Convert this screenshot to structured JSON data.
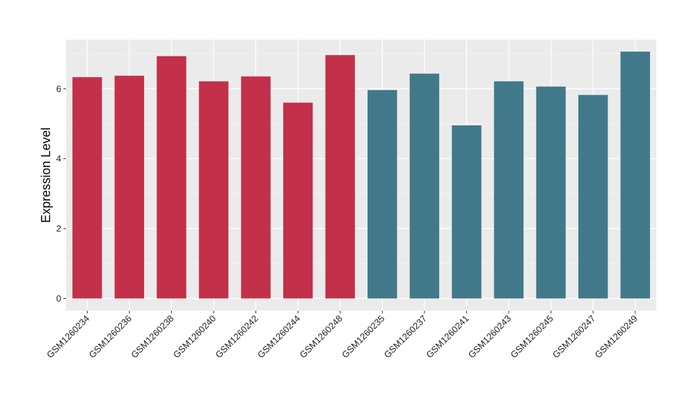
{
  "chart_data": {
    "type": "bar",
    "title": "",
    "xlabel": "",
    "ylabel": "Expression Level",
    "ylim": [
      0,
      7.3
    ],
    "yticks": [
      0,
      2,
      4,
      6
    ],
    "grid": true,
    "legend": "none",
    "background": "#ebebeb",
    "categories": [
      "GSM1260234",
      "GSM1260236",
      "GSM1260238",
      "GSM1260240",
      "GSM1260242",
      "GSM1260244",
      "GSM1260248",
      "GSM1260235",
      "GSM1260237",
      "GSM1260241",
      "GSM1260243",
      "GSM1260245",
      "GSM1260247",
      "GSM1260249"
    ],
    "values": [
      6.33,
      6.37,
      6.93,
      6.21,
      6.35,
      5.6,
      6.96,
      5.96,
      6.43,
      4.95,
      6.21,
      6.06,
      5.82,
      7.06
    ],
    "colors": [
      "#c3304a",
      "#c3304a",
      "#c3304a",
      "#c3304a",
      "#c3304a",
      "#c3304a",
      "#c3304a",
      "#41798b",
      "#41798b",
      "#41798b",
      "#41798b",
      "#41798b",
      "#41798b",
      "#41798b"
    ]
  }
}
